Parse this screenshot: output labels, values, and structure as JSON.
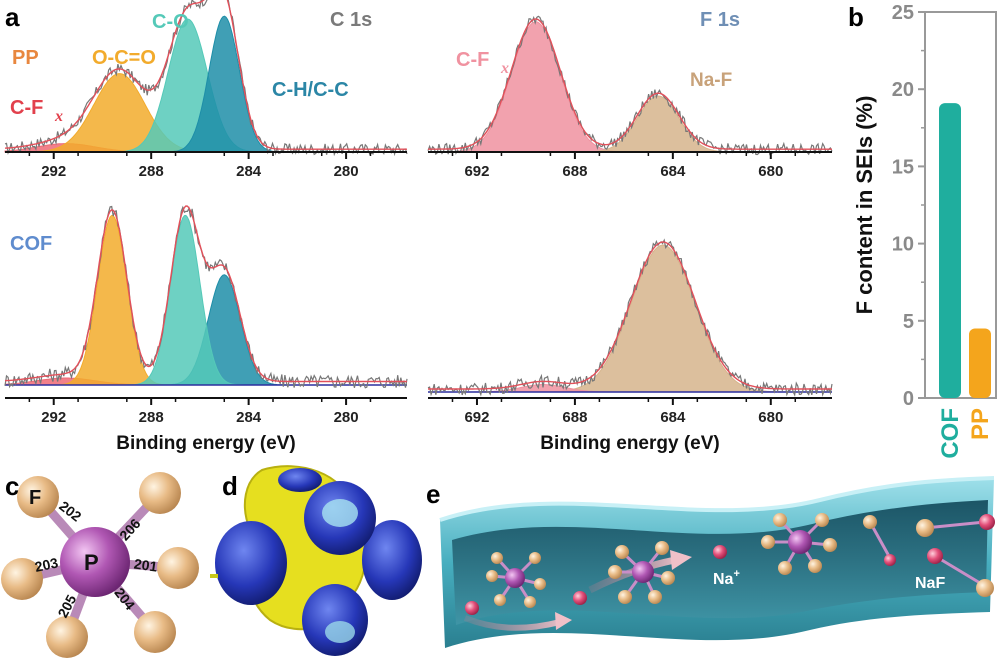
{
  "panels": {
    "a": "a",
    "b": "b",
    "c": "c",
    "d": "d",
    "e": "e"
  },
  "colors": {
    "oco": "#f2ab2c",
    "co": "#55c9b8",
    "chcc": "#1e8ea8",
    "cfx": "#ef6a75",
    "cfx_f": "#f092a0",
    "naf": "#d6b48c",
    "baseline": "#2b2f9e",
    "raw": "#777777",
    "fit": "#e2505a",
    "cof_bar": "#1fae9e",
    "pp_bar": "#f4a51c",
    "atom_f": "#e6b884",
    "atom_p": "#a64ea8",
    "na": "#e04a6a",
    "tube": "#4db4c4"
  },
  "text": {
    "c1s": "C 1s",
    "f1s": "F 1s",
    "pp": "PP",
    "cof": "COF",
    "co": "C-O",
    "oco": "O-C=O",
    "chcc": "C-H/C-C",
    "cfx_c": "C-F",
    "cfx_sub": "x",
    "cfx_f": "C-F",
    "naf": "Na-F",
    "xlabel": "Binding energy (eV)"
  },
  "chart_data": [
    {
      "type": "line",
      "panel": "a",
      "title": "C 1s",
      "sample": "PP",
      "xlabel": "",
      "xlim": [
        294,
        277.5
      ],
      "xticks": [
        292,
        288,
        284,
        280
      ],
      "series": [
        {
          "name": "C-F",
          "center": 291.5,
          "height": 0.06,
          "width": 1.2
        },
        {
          "name": "O-C=O",
          "center": 289.3,
          "height": 0.56,
          "width": 1.05
        },
        {
          "name": "C-O",
          "center": 286.5,
          "height": 0.95,
          "width": 0.8
        },
        {
          "name": "C-H/C-C",
          "center": 285.0,
          "height": 0.97,
          "width": 0.62
        }
      ]
    },
    {
      "type": "line",
      "panel": "a",
      "title": "",
      "sample": "COF",
      "xlabel": "Binding energy (eV)",
      "xlim": [
        294,
        277.5
      ],
      "xticks": [
        292,
        288,
        284,
        280
      ],
      "series": [
        {
          "name": "C-F",
          "center": 291.5,
          "height": 0.04,
          "width": 1.2
        },
        {
          "name": "O-C=O",
          "center": 289.6,
          "height": 0.97,
          "width": 0.6
        },
        {
          "name": "C-O",
          "center": 286.6,
          "height": 0.97,
          "width": 0.6
        },
        {
          "name": "C-H/C-C",
          "center": 285.0,
          "height": 0.63,
          "width": 0.65
        }
      ]
    },
    {
      "type": "line",
      "panel": "a",
      "title": "F 1s",
      "sample": "PP",
      "xlabel": "",
      "xlim": [
        694,
        677.5
      ],
      "xticks": [
        692,
        688,
        684,
        680
      ],
      "series": [
        {
          "name": "C-F",
          "center": 689.6,
          "height": 0.93,
          "width": 1.0
        },
        {
          "name": "Na-F",
          "center": 684.6,
          "height": 0.4,
          "width": 0.85
        }
      ]
    },
    {
      "type": "line",
      "panel": "a",
      "title": "",
      "sample": "COF",
      "xlabel": "Binding energy (eV)",
      "xlim": [
        694,
        677.5
      ],
      "xticks": [
        692,
        688,
        684,
        680
      ],
      "series": [
        {
          "name": "C-F",
          "center": 689.3,
          "height": 0.05,
          "width": 0.9
        },
        {
          "name": "Na-F",
          "center": 684.4,
          "height": 0.98,
          "width": 1.3
        }
      ]
    },
    {
      "type": "bar",
      "panel": "b",
      "categories": [
        "COF",
        "PP"
      ],
      "values": [
        19.1,
        4.5
      ],
      "ylabel": "F content in SEIs (%)",
      "ylim": [
        0,
        25
      ],
      "yticks": [
        0,
        5,
        10,
        15,
        20,
        25
      ]
    }
  ],
  "molecule": {
    "center": "P",
    "ligand": "F",
    "bonds": [
      "202",
      "206",
      "201",
      "204",
      "205",
      "203"
    ]
  },
  "scheme": {
    "na_label": "Na",
    "na_charge": "+",
    "naf_label": "NaF"
  }
}
